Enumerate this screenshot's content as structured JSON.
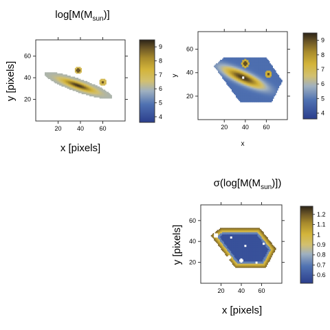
{
  "chart_data": [
    {
      "type": "heatmap",
      "title": "log[M(M",
      "title_sub": "sun",
      "title_end": ")]",
      "xlabel": "x [pixels]",
      "ylabel": "y [pixels]",
      "xlim": [
        0,
        80
      ],
      "ylim": [
        0,
        75
      ],
      "xticks": [
        20,
        40,
        60
      ],
      "yticks": [
        20,
        40,
        60
      ],
      "colorbar": {
        "min": 3.6,
        "max": 9.5,
        "ticks": [
          4,
          5,
          6,
          7,
          8,
          9
        ]
      },
      "structure": {
        "galaxy_center": [
          38,
          33
        ],
        "major_axis_angle_deg": -20,
        "half_length": 32,
        "half_width": 6,
        "companions": [
          [
            38,
            47,
            1.6
          ],
          [
            60,
            36,
            1.5
          ]
        ],
        "core_value": 9.3,
        "edge_value": 6.0
      }
    },
    {
      "type": "heatmap",
      "title": "",
      "xlabel": "x",
      "ylabel": "y",
      "xlim": [
        -5,
        80
      ],
      "ylim": [
        0,
        75
      ],
      "xticks": [
        20,
        40,
        60
      ],
      "yticks": [
        20,
        40,
        60
      ],
      "colorbar": {
        "min": 3.6,
        "max": 9.5,
        "ticks": [
          4,
          5,
          6,
          7,
          8,
          9
        ]
      },
      "structure": {
        "galaxy_center": [
          38,
          36
        ],
        "region_polygon": [
          [
            10,
            46
          ],
          [
            20,
            53
          ],
          [
            60,
            53
          ],
          [
            75,
            33
          ],
          [
            65,
            15
          ],
          [
            35,
            15
          ]
        ],
        "companions": [
          [
            40,
            48,
            1.6
          ],
          [
            62,
            39,
            1.5
          ]
        ],
        "core_value": 9.3,
        "background_value": 4.8
      }
    },
    {
      "type": "heatmap",
      "title": "σ(log[M(M",
      "title_sub": "sun",
      "title_end": ")])",
      "xlabel": "x [pixels]",
      "ylabel": "y [pixels]",
      "xlim": [
        0,
        80
      ],
      "ylim": [
        0,
        75
      ],
      "xticks": [
        20,
        40,
        60
      ],
      "yticks": [
        20,
        40,
        60
      ],
      "colorbar": {
        "min": 0.52,
        "max": 1.28,
        "ticks": [
          0.6,
          0.7,
          0.8,
          0.9,
          1.0,
          1.1,
          1.2
        ]
      },
      "structure": {
        "region_polygon": [
          [
            10,
            46
          ],
          [
            20,
            53
          ],
          [
            58,
            53
          ],
          [
            74,
            33
          ],
          [
            64,
            15
          ],
          [
            34,
            15
          ]
        ],
        "interior_value": 0.58,
        "edge_value": 1.2
      }
    }
  ]
}
